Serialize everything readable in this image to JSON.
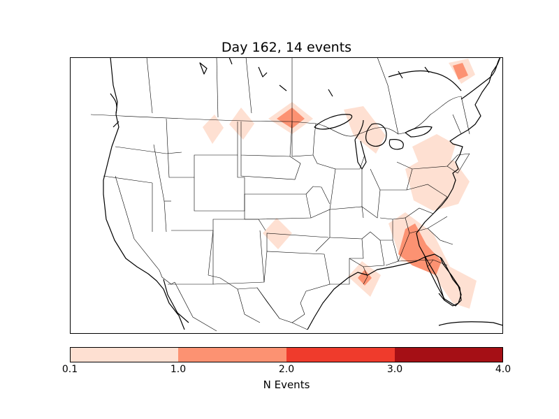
{
  "title": "Day 162, 14 events",
  "colorbar": {
    "label": "N Events",
    "ticks": [
      "0.1",
      "1.0",
      "2.0",
      "3.0",
      "4.0"
    ],
    "bins": [
      {
        "range": [
          0.1,
          1.0
        ],
        "color": "#fee0d2"
      },
      {
        "range": [
          1.0,
          2.0
        ],
        "color": "#fc9272"
      },
      {
        "range": [
          2.0,
          3.0
        ],
        "color": "#ef3b2c"
      },
      {
        "range": [
          3.0,
          4.0
        ],
        "color": "#a50f15"
      }
    ]
  },
  "map": {
    "region": "contiguous United States with southern Canada and northern Mexico",
    "projection": "lambert-conformal",
    "borders": [
      "coastlines",
      "national",
      "state/province"
    ]
  },
  "chart_data": {
    "type": "heatmap",
    "title": "Day 162, 14 events",
    "colorbar_label": "N Events",
    "color_bins": [
      0.1,
      1.0,
      2.0,
      3.0,
      4.0
    ],
    "max_level_shown": "1.0–2.0",
    "hotspots": [
      {
        "region": "Montana (west)",
        "level": "0.1–1.0"
      },
      {
        "region": "Montana (central)",
        "level": "0.1–1.0"
      },
      {
        "region": "North Dakota / Manitoba border",
        "level": "1.0–2.0"
      },
      {
        "region": "Lower Michigan",
        "level": "0.1–1.0"
      },
      {
        "region": "Pennsylvania / Maryland",
        "level": "0.1–1.0"
      },
      {
        "region": "Virginia / North Carolina",
        "level": "0.1–1.0"
      },
      {
        "region": "Northern Maine",
        "level": "1.0–2.0"
      },
      {
        "region": "Oklahoma / Texas panhandle",
        "level": "0.1–1.0"
      },
      {
        "region": "Georgia / Florida",
        "level": "1.0–2.0"
      },
      {
        "region": "Southern Louisiana",
        "level": "1.0–2.0"
      },
      {
        "region": "South Florida",
        "level": "0.1–1.0"
      }
    ]
  }
}
